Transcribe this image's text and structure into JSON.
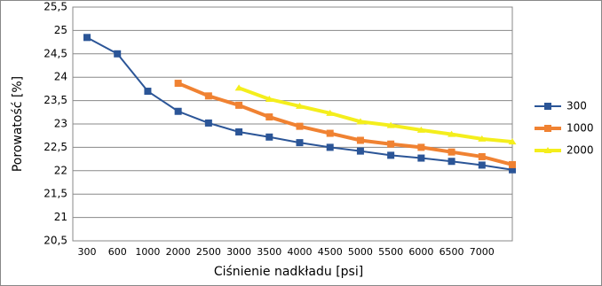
{
  "chart_data": {
    "type": "line",
    "x_label": "Ciśnienie nadkładu [psi]",
    "y_label": "Porowatość [%]",
    "categories": [
      "300",
      "600",
      "1000",
      "2000",
      "2500",
      "3000",
      "3500",
      "4000",
      "4500",
      "5000",
      "5500",
      "6000",
      "6500",
      "7000",
      null
    ],
    "series": [
      {
        "name": "300",
        "color": "#2b5597",
        "marker": "square",
        "values": [
          24.85,
          24.5,
          23.7,
          23.27,
          23.02,
          22.83,
          22.72,
          22.6,
          22.5,
          22.42,
          22.33,
          22.27,
          22.2,
          22.12,
          22.02
        ]
      },
      {
        "name": "1000",
        "color": "#f08232",
        "marker": "square",
        "values": [
          null,
          null,
          null,
          23.87,
          23.6,
          23.4,
          23.15,
          22.95,
          22.8,
          22.65,
          22.57,
          22.5,
          22.4,
          22.3,
          22.13
        ]
      },
      {
        "name": "2000",
        "color": "#f4ee1c",
        "marker": "triangle",
        "values": [
          null,
          null,
          null,
          null,
          null,
          23.77,
          23.53,
          23.38,
          23.23,
          23.05,
          22.97,
          22.87,
          22.78,
          22.68,
          22.62
        ]
      }
    ],
    "ylim": [
      20.5,
      25.5
    ],
    "yticks": [
      {
        "value": 20.5,
        "label": "20,5"
      },
      21,
      {
        "value": 21.5,
        "label": "21,5"
      },
      22,
      {
        "value": 22.5,
        "label": "22,5"
      },
      23,
      {
        "value": 23.5,
        "label": "23,5"
      },
      24,
      {
        "value": 24.5,
        "label": "24,5"
      },
      25,
      {
        "value": 25.5,
        "label": "25,5"
      }
    ],
    "grid": true
  }
}
